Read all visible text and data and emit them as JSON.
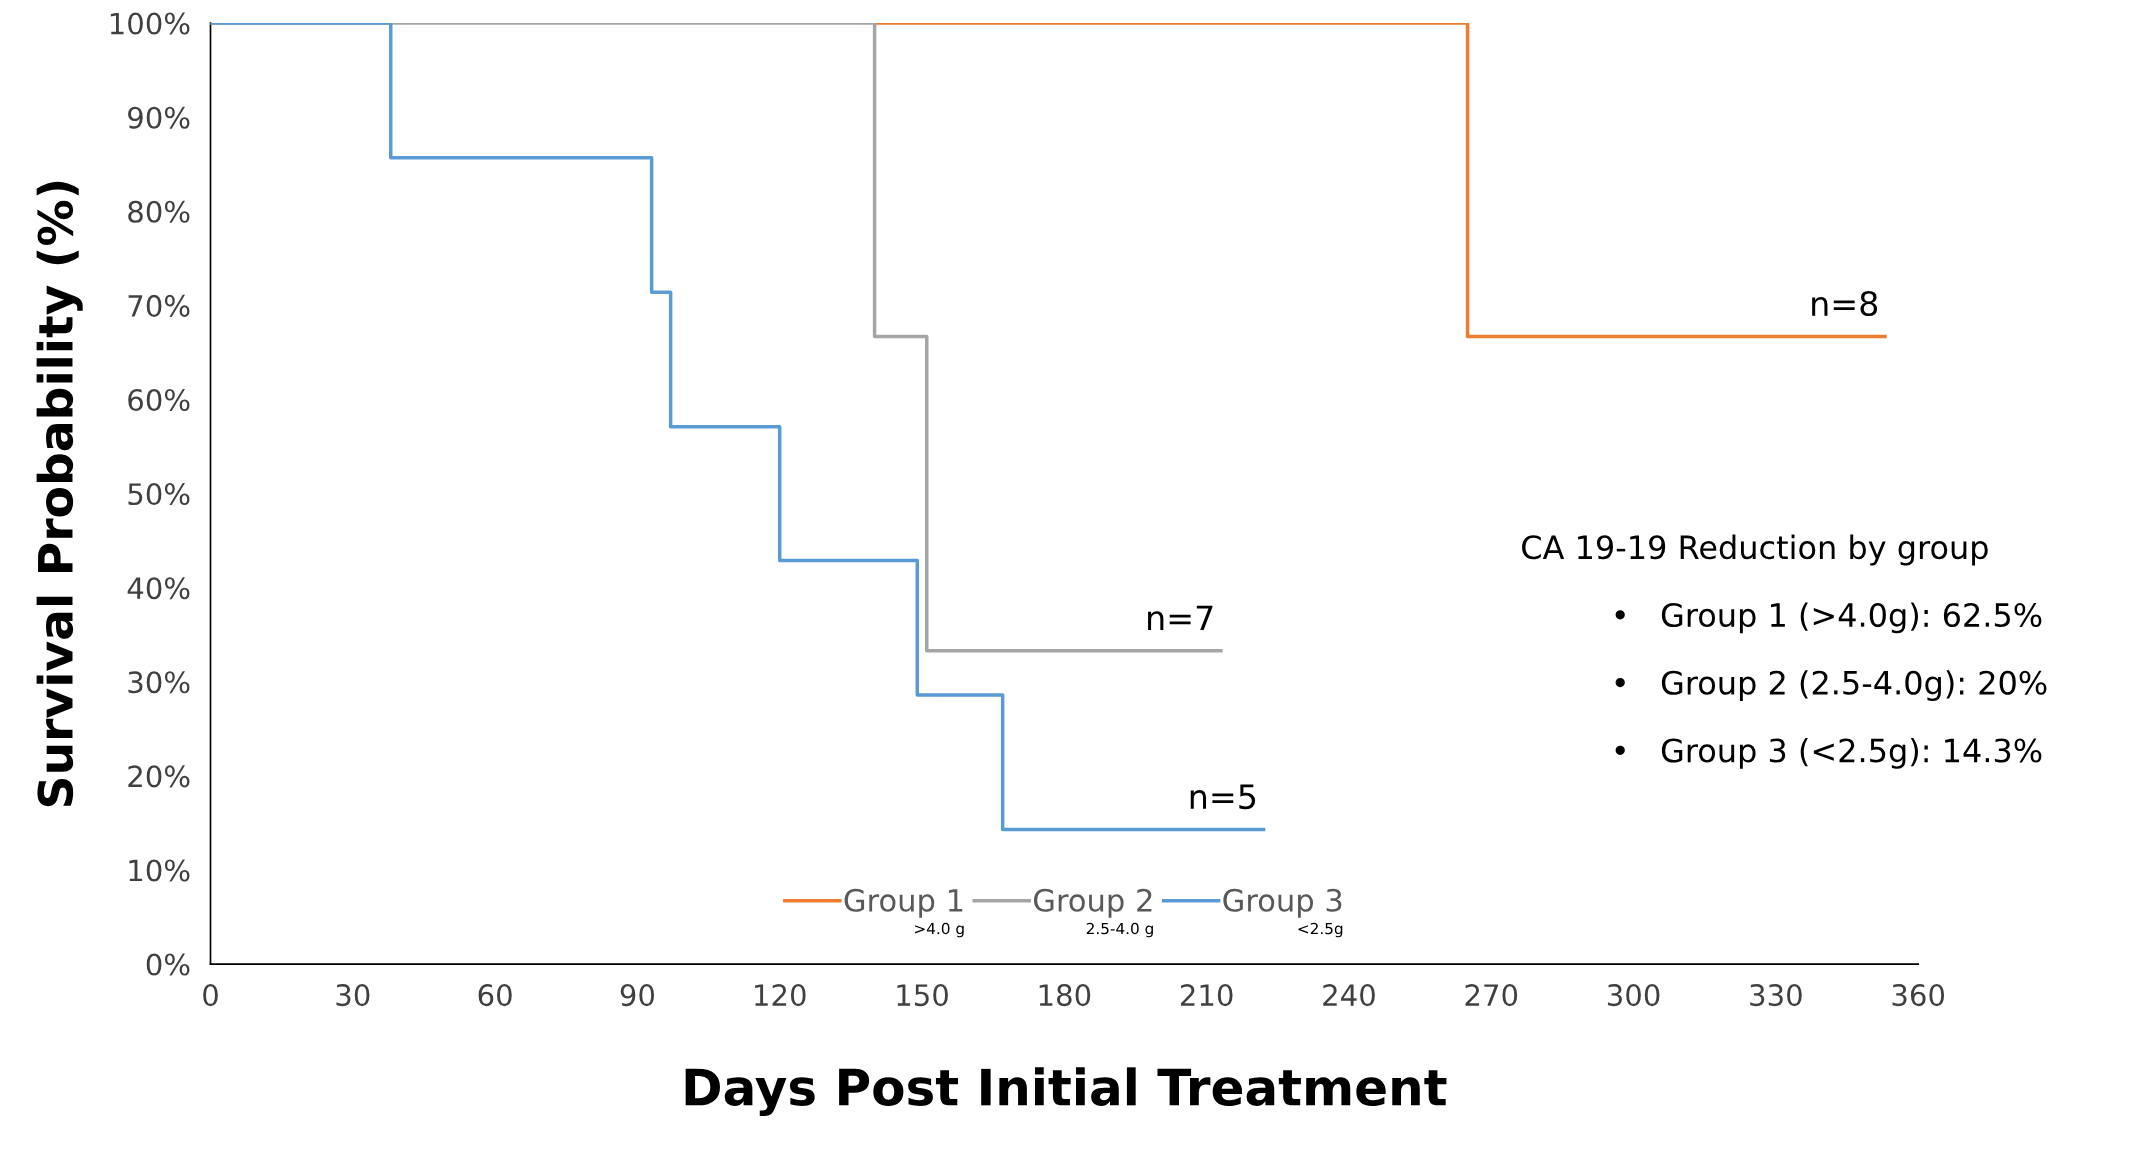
{
  "chart_data": {
    "type": "step",
    "xlabel": "Days Post Initial Treatment",
    "ylabel": "Survival Probability (%)",
    "xlim": [
      0,
      360
    ],
    "xticks": [
      0,
      30,
      60,
      90,
      120,
      150,
      180,
      210,
      240,
      270,
      300,
      330,
      360
    ],
    "ylim": [
      0,
      100
    ],
    "yticks": [
      {
        "value": 0,
        "label": "0%"
      },
      {
        "value": 10,
        "label": "10%"
      },
      {
        "value": 20,
        "label": "20%"
      },
      {
        "value": 30,
        "label": "30%"
      },
      {
        "value": 40,
        "label": "40%"
      },
      {
        "value": 50,
        "label": "50%"
      },
      {
        "value": 60,
        "label": "60%"
      },
      {
        "value": 70,
        "label": "70%"
      },
      {
        "value": 80,
        "label": "80%"
      },
      {
        "value": 90,
        "label": "90%"
      },
      {
        "value": 100,
        "label": "100%"
      }
    ],
    "grid": false,
    "legend": "bottom",
    "line_style": "solid",
    "series": [
      {
        "name": "Group 1",
        "color": "#ed7d31",
        "x": [
          140,
          265,
          353
        ],
        "values": [
          100,
          66.7,
          66.7
        ]
      },
      {
        "name": "Group 2",
        "color": "#a5a5a5",
        "x": [
          0,
          140,
          151,
          213
        ],
        "values": [
          100,
          66.7,
          33.3,
          33.3
        ]
      },
      {
        "name": "Group 3",
        "color": "#5b9bd5",
        "x": [
          0,
          38,
          93,
          97,
          120,
          149,
          167,
          222
        ],
        "values": [
          100,
          85.7,
          71.4,
          57.1,
          42.9,
          28.6,
          14.3,
          14.3
        ]
      }
    ],
    "annotations": [
      "n=8",
      "n=7",
      "n=5",
      "CA 19-19 Reduction by group",
      "•   Group 1 (>4.0g): 62.5%",
      "•   Group 2 (2.5-4.0g): 20%",
      "•   Group 3 (<2.5g): 14.3%",
      ">4.0 g",
      "2.5-4.0 g",
      "<2.5g"
    ]
  }
}
